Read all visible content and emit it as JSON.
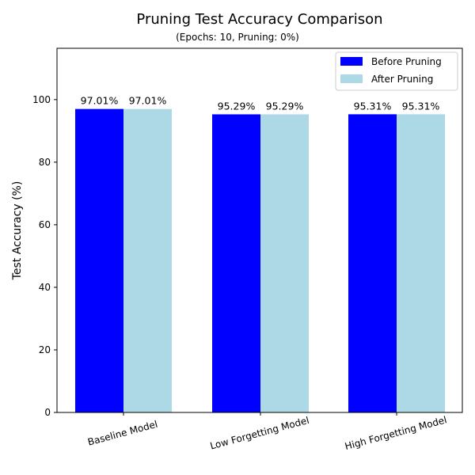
{
  "chart_data": {
    "type": "bar",
    "title": "Pruning Test Accuracy Comparison",
    "subtitle": "(Epochs: 10, Pruning: 0%)",
    "xlabel": "",
    "ylabel": "Test Accuracy (%)",
    "categories": [
      "Baseline Model",
      "Low Forgetting Model",
      "High Forgetting Model"
    ],
    "series": [
      {
        "name": "Before Pruning",
        "values": [
          97.01,
          95.29,
          95.31
        ],
        "color": "#0000ff"
      },
      {
        "name": "After Pruning",
        "values": [
          97.01,
          95.29,
          95.31
        ],
        "color": "#add8e6"
      }
    ],
    "data_labels": [
      [
        "97.01%",
        "95.29%",
        "95.31%"
      ],
      [
        "97.01%",
        "95.29%",
        "95.31%"
      ]
    ],
    "ylim": [
      0,
      116.4
    ],
    "yticks": [
      0,
      20,
      40,
      60,
      80,
      100
    ],
    "ytick_labels": [
      "0",
      "20",
      "40",
      "60",
      "80",
      "100"
    ],
    "xtick_rotation": "15 degrees",
    "legend_position": "top-right",
    "grid": false
  }
}
